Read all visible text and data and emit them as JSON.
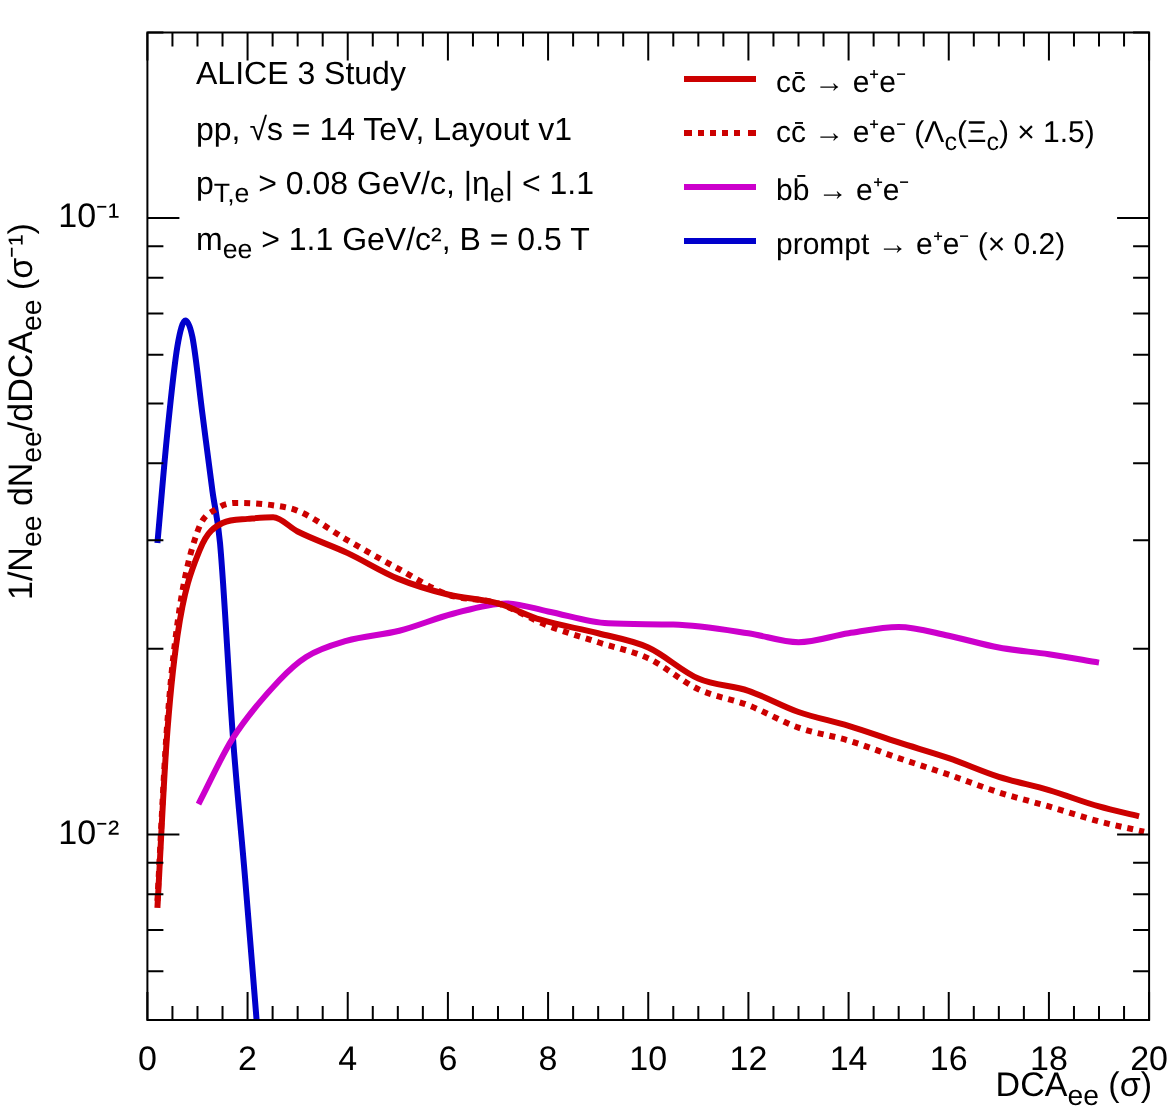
{
  "chart_data": {
    "type": "line",
    "xlabel": "DCA$_{ee}$ (σ)",
    "ylabel": "1/N$_{ee}$ dN$_{ee}$/dDCA$_{ee}$ (σ⁻¹)",
    "annotations": [
      "ALICE 3 Study",
      "pp, √s = 14 TeV, Layout v1",
      "p$_{T,e}$ > 0.08 GeV/c, |η$_{e}$| < 1.1",
      "m$_{ee}$ > 1.1 GeV/c², B = 0.5 T"
    ],
    "xlim": [
      0,
      20
    ],
    "ylim": [
      0.005,
      0.2
    ],
    "log": "y",
    "legend": "top right",
    "marker": "none",
    "line_style": "solid",
    "xticks": [
      0,
      {
        "value": 0.5,
        "label": null
      },
      {
        "value": 1,
        "label": null
      },
      {
        "value": 1.5,
        "label": null
      },
      2,
      {
        "value": 2.5,
        "label": null
      },
      {
        "value": 3,
        "label": null
      },
      {
        "value": 3.5,
        "label": null
      },
      4,
      {
        "value": 4.5,
        "label": null
      },
      {
        "value": 5,
        "label": null
      },
      {
        "value": 5.5,
        "label": null
      },
      6,
      {
        "value": 6.5,
        "label": null
      },
      {
        "value": 7,
        "label": null
      },
      {
        "value": 7.5,
        "label": null
      },
      8,
      {
        "value": 8.5,
        "label": null
      },
      {
        "value": 9,
        "label": null
      },
      {
        "value": 9.5,
        "label": null
      },
      10,
      {
        "value": 10.5,
        "label": null
      },
      {
        "value": 11,
        "label": null
      },
      {
        "value": 11.5,
        "label": null
      },
      12,
      {
        "value": 12.5,
        "label": null
      },
      {
        "value": 13,
        "label": null
      },
      {
        "value": 13.5,
        "label": null
      },
      14,
      {
        "value": 14.5,
        "label": null
      },
      {
        "value": 15,
        "label": null
      },
      {
        "value": 15.5,
        "label": null
      },
      16,
      {
        "value": 16.5,
        "label": null
      },
      {
        "value": 17,
        "label": null
      },
      {
        "value": 17.5,
        "label": null
      },
      18,
      {
        "value": 18.5,
        "label": null
      },
      {
        "value": 19,
        "label": null
      },
      {
        "value": 19.5,
        "label": null
      },
      20
    ],
    "yticks": [
      {
        "value": 0.005,
        "label": null
      },
      {
        "value": 0.006,
        "label": null
      },
      {
        "value": 0.007,
        "label": null
      },
      {
        "value": 0.008,
        "label": null
      },
      {
        "value": 0.009,
        "label": null
      },
      {
        "value": 0.01,
        "label": "10⁻²"
      },
      {
        "value": 0.02,
        "label": null
      },
      {
        "value": 0.03,
        "label": null
      },
      {
        "value": 0.04,
        "label": null
      },
      {
        "value": 0.05,
        "label": null
      },
      {
        "value": 0.06,
        "label": null
      },
      {
        "value": 0.07,
        "label": null
      },
      {
        "value": 0.08,
        "label": null
      },
      {
        "value": 0.09,
        "label": null
      },
      {
        "value": 0.1,
        "label": "10⁻¹"
      },
      {
        "value": 0.2,
        "label": null
      }
    ],
    "series": [
      {
        "name": "cc̄ → e⁺e⁻",
        "color": "#cc0000",
        "x": [
          0.2,
          0.38,
          0.6,
          1.05,
          1.5,
          2,
          2.51,
          3,
          4,
          5,
          6,
          7,
          7.85,
          9,
          10,
          11,
          12,
          13,
          14,
          15,
          16,
          17,
          18,
          19,
          19.8
        ],
        "values": [
          0.0076,
          0.014,
          0.021,
          0.029,
          0.032,
          0.0325,
          0.0327,
          0.031,
          0.0286,
          0.026,
          0.0245,
          0.0237,
          0.0223,
          0.0212,
          0.0201,
          0.0179,
          0.0171,
          0.0158,
          0.015,
          0.0141,
          0.0133,
          0.0124,
          0.0118,
          0.0111,
          0.0107
        ]
      },
      {
        "name": "cc̄ → e⁺e⁻ (Λ$_{c}$(Ξ$_{c}$) × 1.5)",
        "color": "#cc0000",
        "line_style": "dotted",
        "x": [
          0.2,
          0.38,
          0.6,
          1,
          1.4,
          1.8,
          2.5,
          3,
          4,
          5,
          6,
          7,
          8,
          9,
          10,
          11,
          12,
          13,
          14,
          15,
          16,
          17,
          18,
          19,
          19.9
        ],
        "values": [
          0.0078,
          0.0145,
          0.022,
          0.031,
          0.0338,
          0.0345,
          0.0342,
          0.0335,
          0.03,
          0.027,
          0.0245,
          0.0237,
          0.0218,
          0.0205,
          0.0193,
          0.0172,
          0.0162,
          0.0149,
          0.0142,
          0.0133,
          0.0125,
          0.0117,
          0.0111,
          0.0105,
          0.0101
        ]
      },
      {
        "name": "bb̄ → e⁺e⁻",
        "color": "#cc00cc",
        "x": [
          1.02,
          1.7,
          2.64,
          3.17,
          3.97,
          5.03,
          6.1,
          7.16,
          8,
          9.2,
          10.5,
          12,
          13,
          14,
          15,
          16,
          17,
          18,
          19
        ],
        "values": [
          0.0112,
          0.0143,
          0.0178,
          0.0194,
          0.0206,
          0.0214,
          0.0228,
          0.0237,
          0.023,
          0.022,
          0.0219,
          0.0212,
          0.0205,
          0.0212,
          0.0217,
          0.021,
          0.0201,
          0.0196,
          0.019
        ]
      },
      {
        "name": "prompt → e⁺e⁻ (× 0.2)",
        "color": "#0000cc",
        "x": [
          0.2,
          0.4,
          0.6,
          0.76,
          0.9,
          1.1,
          1.3,
          1.45,
          1.71,
          1.95,
          2.18
        ],
        "values": [
          0.0297,
          0.045,
          0.062,
          0.0682,
          0.064,
          0.048,
          0.036,
          0.0297,
          0.0143,
          0.0085,
          0.005
        ]
      }
    ]
  }
}
